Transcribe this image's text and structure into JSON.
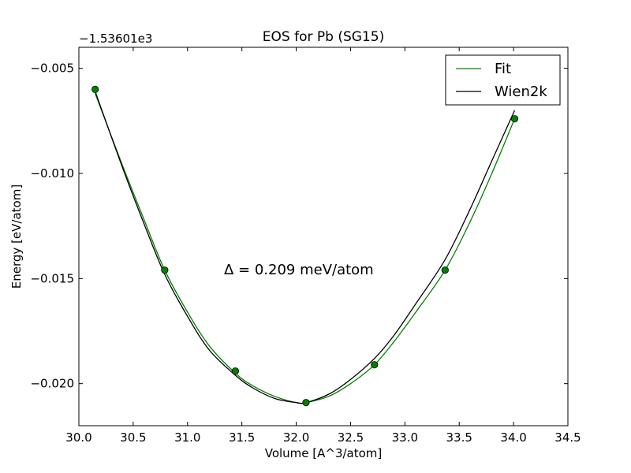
{
  "chart_data": {
    "type": "line",
    "title": "EOS for Pb (SG15)",
    "xlabel": "Volume [A^3/atom]",
    "ylabel": "Energy [eV/atom]",
    "offset_label": "−1.53601e3",
    "annotation": "Δ = 0.209 meV/atom",
    "xlim": [
      30.0,
      34.5
    ],
    "ylim": [
      -0.022,
      -0.004
    ],
    "x_ticks": [
      30.0,
      30.5,
      31.0,
      31.5,
      32.0,
      32.5,
      33.0,
      33.5,
      34.0,
      34.5
    ],
    "x_tick_labels": [
      "30.0",
      "30.5",
      "31.0",
      "31.5",
      "32.0",
      "32.5",
      "33.0",
      "33.5",
      "34.0",
      "34.5"
    ],
    "y_ticks": [
      -0.005,
      -0.01,
      -0.015,
      -0.02
    ],
    "y_tick_labels": [
      "−0.005",
      "−0.010",
      "−0.015",
      "−0.020"
    ],
    "legend_position": "top-right",
    "grid": false,
    "points": {
      "x": [
        30.15,
        30.79,
        31.44,
        32.09,
        32.72,
        33.37,
        34.01
      ],
      "y": [
        -0.006,
        -0.0146,
        -0.0194,
        -0.0209,
        -0.0191,
        -0.0146,
        -0.0074
      ],
      "color": "#008000"
    },
    "series": [
      {
        "name": "Fit",
        "color": "#008000",
        "x": [
          30.15,
          30.4,
          30.6,
          30.79,
          31.0,
          31.2,
          31.44,
          31.6,
          31.8,
          32.0,
          32.09,
          32.3,
          32.5,
          32.72,
          32.9,
          33.1,
          33.37,
          33.6,
          33.8,
          34.01
        ],
        "y": [
          -0.0062,
          -0.0096,
          -0.0122,
          -0.0146,
          -0.0166,
          -0.0182,
          -0.0195,
          -0.0201,
          -0.0206,
          -0.0209,
          -0.0209,
          -0.0206,
          -0.02,
          -0.0191,
          -0.018,
          -0.0166,
          -0.0146,
          -0.0123,
          -0.01,
          -0.0074
        ]
      },
      {
        "name": "Wien2k",
        "color": "#000000",
        "x": [
          30.15,
          30.4,
          30.6,
          30.79,
          31.0,
          31.2,
          31.44,
          31.6,
          31.8,
          32.0,
          32.09,
          32.3,
          32.5,
          32.72,
          32.9,
          33.1,
          33.37,
          33.6,
          33.8,
          34.01
        ],
        "y": [
          -0.0061,
          -0.0097,
          -0.0124,
          -0.0148,
          -0.0168,
          -0.0184,
          -0.0196,
          -0.0202,
          -0.0207,
          -0.0209,
          -0.0209,
          -0.0205,
          -0.0198,
          -0.0188,
          -0.0177,
          -0.0162,
          -0.0141,
          -0.0117,
          -0.0094,
          -0.007
        ]
      }
    ]
  }
}
